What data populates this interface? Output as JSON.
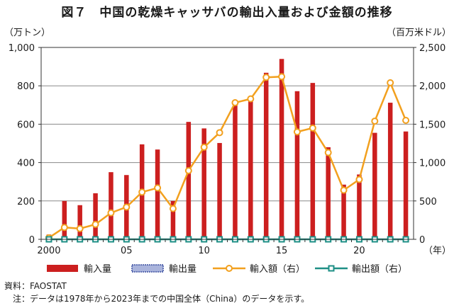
{
  "title": "図７　中国の乾燥キャッサバの輸出入量および金額の推移",
  "notes": {
    "source": "資料：FAOSTAT",
    "note": "　注：データは1978年から2023年までの中国全体（China）のデータを示す。"
  },
  "chart_data": {
    "type": "bar+line",
    "x": [
      2000,
      2001,
      2002,
      2003,
      2004,
      2005,
      2006,
      2007,
      2008,
      2009,
      2010,
      2011,
      2012,
      2013,
      2014,
      2015,
      2016,
      2017,
      2018,
      2019,
      2020,
      2021,
      2022,
      2023
    ],
    "x_tick_labels": [
      "2000",
      "05",
      "10",
      "15",
      "20"
    ],
    "x_tick_years": [
      2000,
      2005,
      2010,
      2015,
      2020
    ],
    "x_unit": "（年）",
    "left_axis": {
      "unit": "（万トン）",
      "ylim": [
        0,
        1000
      ],
      "ticks": [
        0,
        200,
        400,
        600,
        800,
        1000
      ],
      "tick_labels": [
        "0",
        "200",
        "400",
        "600",
        "800",
        "1,000"
      ]
    },
    "right_axis": {
      "unit": "（百万米ドル）",
      "ylim": [
        0,
        2500
      ],
      "ticks": [
        0,
        500,
        1000,
        1500,
        2000,
        2500
      ],
      "tick_labels": [
        "0",
        "500",
        "1,000",
        "1,500",
        "2,000",
        "2,500"
      ]
    },
    "series": [
      {
        "name": "輸入量",
        "kind": "bar",
        "axis": "left",
        "color": "#cc1f1f",
        "values": [
          25,
          200,
          178,
          240,
          350,
          335,
          495,
          468,
          200,
          612,
          578,
          502,
          718,
          742,
          868,
          940,
          772,
          815,
          480,
          285,
          338,
          555,
          712,
          562
        ]
      },
      {
        "name": "輸出量",
        "kind": "bar",
        "axis": "left",
        "color": "#3a4fa0",
        "values": [
          0,
          0,
          0,
          0,
          0,
          0,
          0,
          0,
          0,
          0,
          0,
          0,
          0,
          0,
          0,
          0,
          0,
          0,
          0,
          0,
          0,
          0,
          0,
          0
        ]
      },
      {
        "name": "輸入額（右）",
        "kind": "line",
        "axis": "right",
        "color": "#f2a01e",
        "values": [
          20,
          155,
          140,
          195,
          345,
          420,
          615,
          670,
          400,
          895,
          1200,
          1390,
          1780,
          1830,
          2110,
          2120,
          1400,
          1450,
          1130,
          640,
          780,
          1540,
          2040,
          1550
        ]
      },
      {
        "name": "輸出額（右）",
        "kind": "line",
        "axis": "right",
        "color": "#1e8f86",
        "values": [
          0,
          0,
          0,
          0,
          0,
          0,
          0,
          0,
          0,
          0,
          0,
          0,
          0,
          0,
          0,
          0,
          0,
          0,
          0,
          0,
          0,
          0,
          0,
          0
        ]
      }
    ],
    "grid": "horizontal",
    "legend_position": "bottom"
  }
}
